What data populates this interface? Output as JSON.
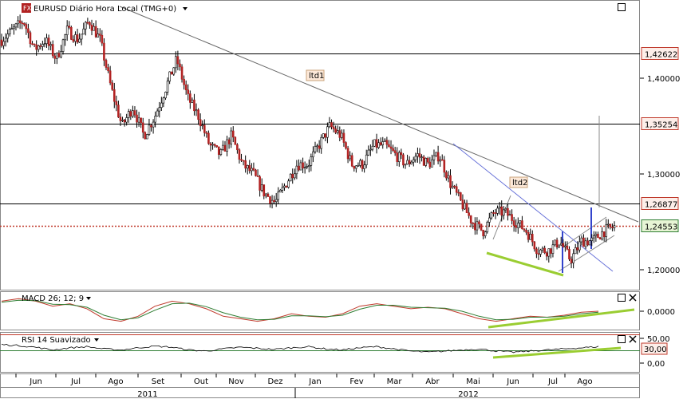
{
  "main": {
    "title": "EURUSD Diário Hora Local (TMG+0)",
    "title_icon": "fx-icon",
    "maximize_icon": "maximize-icon",
    "dropdown_icon": "chevron-down-icon"
  },
  "chart_data": [
    {
      "type": "candlestick",
      "title": "EURUSD Diário Hora Local (TMG+0)",
      "ylim": [
        1.18,
        1.48
      ],
      "y_ticks": [
        "1,40000",
        "1,30000",
        "1,20000"
      ],
      "y_tick_values": [
        1.4,
        1.3,
        1.2
      ],
      "x_month_labels": [
        "Jun",
        "Jul",
        "Ago",
        "Set",
        "Out",
        "Nov",
        "Dez",
        "Jan",
        "Fev",
        "Mar",
        "Abr",
        "Mai",
        "Jun",
        "Jul",
        "Ago"
      ],
      "x_year_labels": [
        "2011",
        "2012"
      ],
      "price_levels": [
        {
          "label": "1,42622",
          "value": 1.42622,
          "color": "#c0392b"
        },
        {
          "label": "1,35254",
          "value": 1.35254,
          "color": "#c0392b"
        },
        {
          "label": "1,26877",
          "value": 1.26877,
          "color": "#c0392b"
        },
        {
          "label": "1,24553",
          "value": 1.24553,
          "color": "#2e7d32",
          "current": true
        }
      ],
      "annotations": [
        "ltd1",
        "ltd2"
      ],
      "close_path": [
        [
          0,
          1.44
        ],
        [
          3,
          1.45
        ],
        [
          6,
          1.46
        ],
        [
          9,
          1.43
        ],
        [
          12,
          1.44
        ],
        [
          15,
          1.42
        ],
        [
          18,
          1.45
        ],
        [
          21,
          1.44
        ],
        [
          24,
          1.46
        ],
        [
          27,
          1.44
        ],
        [
          30,
          1.39
        ],
        [
          33,
          1.35
        ],
        [
          36,
          1.37
        ],
        [
          39,
          1.34
        ],
        [
          42,
          1.36
        ],
        [
          45,
          1.39
        ],
        [
          48,
          1.42
        ],
        [
          51,
          1.38
        ],
        [
          54,
          1.36
        ],
        [
          57,
          1.33
        ],
        [
          60,
          1.32
        ],
        [
          63,
          1.34
        ],
        [
          66,
          1.31
        ],
        [
          69,
          1.3
        ],
        [
          72,
          1.28
        ],
        [
          75,
          1.27
        ],
        [
          78,
          1.29
        ],
        [
          81,
          1.31
        ],
        [
          84,
          1.31
        ],
        [
          87,
          1.33
        ],
        [
          90,
          1.35
        ],
        [
          93,
          1.34
        ],
        [
          96,
          1.31
        ],
        [
          99,
          1.31
        ],
        [
          102,
          1.33
        ],
        [
          105,
          1.33
        ],
        [
          108,
          1.32
        ],
        [
          111,
          1.31
        ],
        [
          114,
          1.32
        ],
        [
          117,
          1.31
        ],
        [
          120,
          1.32
        ],
        [
          123,
          1.29
        ],
        [
          126,
          1.27
        ],
        [
          129,
          1.25
        ],
        [
          132,
          1.24
        ],
        [
          135,
          1.26
        ],
        [
          138,
          1.26
        ],
        [
          141,
          1.25
        ],
        [
          144,
          1.24
        ],
        [
          147,
          1.22
        ],
        [
          150,
          1.22
        ],
        [
          153,
          1.23
        ],
        [
          156,
          1.21
        ],
        [
          159,
          1.23
        ],
        [
          162,
          1.23
        ],
        [
          165,
          1.24
        ],
        [
          168,
          1.245
        ]
      ]
    },
    {
      "type": "line",
      "title": "MACD 26; 12; 9",
      "y_ticks": [
        "0,0000"
      ],
      "ylim": [
        -0.035,
        0.035
      ],
      "series": [
        {
          "color": "#c0392b",
          "values": [
            0.02,
            0.025,
            0.02,
            0.01,
            0.015,
            0.005,
            -0.015,
            -0.02,
            -0.01,
            0.01,
            0.02,
            0.015,
            0.005,
            -0.01,
            -0.015,
            -0.02,
            -0.015,
            -0.005,
            -0.01,
            -0.012,
            -0.005,
            0.01,
            0.015,
            0.01,
            0.005,
            0.008,
            0.005,
            -0.005,
            -0.015,
            -0.02,
            -0.015,
            -0.01,
            -0.012,
            -0.008,
            -0.002,
            0.0
          ]
        },
        {
          "color": "#2e7d32",
          "values": [
            0.018,
            0.022,
            0.021,
            0.014,
            0.013,
            0.008,
            -0.008,
            -0.017,
            -0.013,
            0.002,
            0.015,
            0.016,
            0.009,
            -0.003,
            -0.012,
            -0.017,
            -0.016,
            -0.009,
            -0.009,
            -0.011,
            -0.008,
            0.004,
            0.012,
            0.012,
            0.008,
            0.007,
            0.006,
            0.0,
            -0.01,
            -0.017,
            -0.016,
            -0.012,
            -0.012,
            -0.01,
            -0.005,
            -0.002
          ]
        }
      ]
    },
    {
      "type": "line",
      "title": "RSI 14 Suavizado",
      "y_ticks": [
        "50,00",
        "30,00",
        "0,00"
      ],
      "ylim": [
        0,
        70
      ],
      "levels": [
        {
          "label": "30,00",
          "value": 30
        }
      ],
      "series": [
        {
          "color": "#000000",
          "values": [
            50,
            48,
            45,
            40,
            44,
            46,
            42,
            40,
            44,
            47,
            45,
            40,
            38,
            42,
            45,
            43,
            41,
            44,
            46,
            42,
            40,
            44,
            46,
            42,
            38,
            36,
            38,
            40,
            42,
            38,
            36,
            38,
            40,
            42,
            44,
            46
          ]
        }
      ]
    }
  ],
  "macd": {
    "title": "MACD 26; 12; 9",
    "dropdown_icon": "chevron-down-icon"
  },
  "rsi": {
    "title": "RSI 14 Suavizado",
    "dropdown_icon": "chevron-down-icon"
  },
  "panel_controls": {
    "maximize": "maximize-icon",
    "close": "close-icon"
  }
}
